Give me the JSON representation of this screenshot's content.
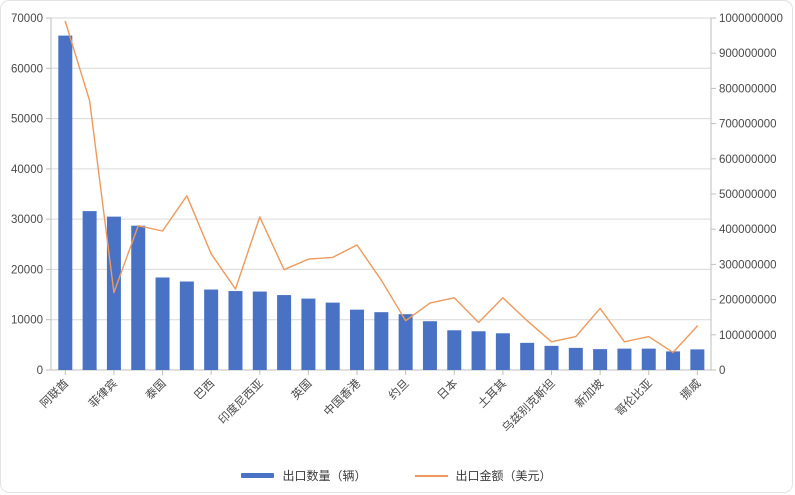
{
  "chart_data": {
    "type": "combo",
    "title": "",
    "categories": [
      "阿联酋",
      "",
      "菲律宾",
      "",
      "泰国",
      "",
      "巴西",
      "",
      "印度尼西亚",
      "",
      "英国",
      "",
      "中国香港",
      "",
      "约旦",
      "",
      "日本",
      "",
      "土耳其",
      "",
      "乌兹别克斯坦",
      "",
      "新加坡",
      "",
      "哥伦比亚",
      "",
      "挪威"
    ],
    "series": [
      {
        "name": "出口数量（辆）",
        "type": "bar",
        "axis": "left",
        "color": "#4a72c4",
        "values": [
          66500,
          31600,
          30500,
          28700,
          18400,
          17600,
          16000,
          15700,
          15600,
          14900,
          14200,
          13400,
          12000,
          11500,
          11100,
          9700,
          7900,
          7700,
          7300,
          5400,
          4800,
          4400,
          4150,
          4250,
          4250,
          3700,
          4100
        ]
      },
      {
        "name": "出口金额（美元）",
        "type": "line",
        "axis": "right",
        "color": "#ed9a5c",
        "values": [
          990000000,
          765000000,
          220000000,
          410000000,
          395000000,
          495000000,
          330000000,
          230000000,
          435000000,
          285000000,
          315000000,
          320000000,
          355000000,
          255000000,
          140000000,
          190000000,
          205000000,
          135000000,
          205000000,
          140000000,
          80000000,
          95000000,
          175000000,
          80000000,
          95000000,
          50000000,
          125000000
        ]
      }
    ],
    "left_axis": {
      "min": 0,
      "max": 70000,
      "step": 10000,
      "ticks": [
        0,
        10000,
        20000,
        30000,
        40000,
        50000,
        60000,
        70000
      ]
    },
    "right_axis": {
      "min": 0,
      "max": 1000000000,
      "step": 100000000,
      "ticks": [
        0,
        100000000,
        200000000,
        300000000,
        400000000,
        500000000,
        600000000,
        700000000,
        800000000,
        900000000,
        1000000000
      ]
    },
    "grid": true,
    "legend_position": "bottom",
    "label_rotation_deg": -45
  },
  "legend": {
    "bar_label": "出口数量（辆）",
    "line_label": "出口金额（美元）"
  },
  "colors": {
    "bar": "#4a72c4",
    "line": "#ed9a5c",
    "gridline": "#d9d9d9",
    "axis_line": "#bfbfbf",
    "tick_text": "#494949",
    "background": "#ffffff"
  }
}
